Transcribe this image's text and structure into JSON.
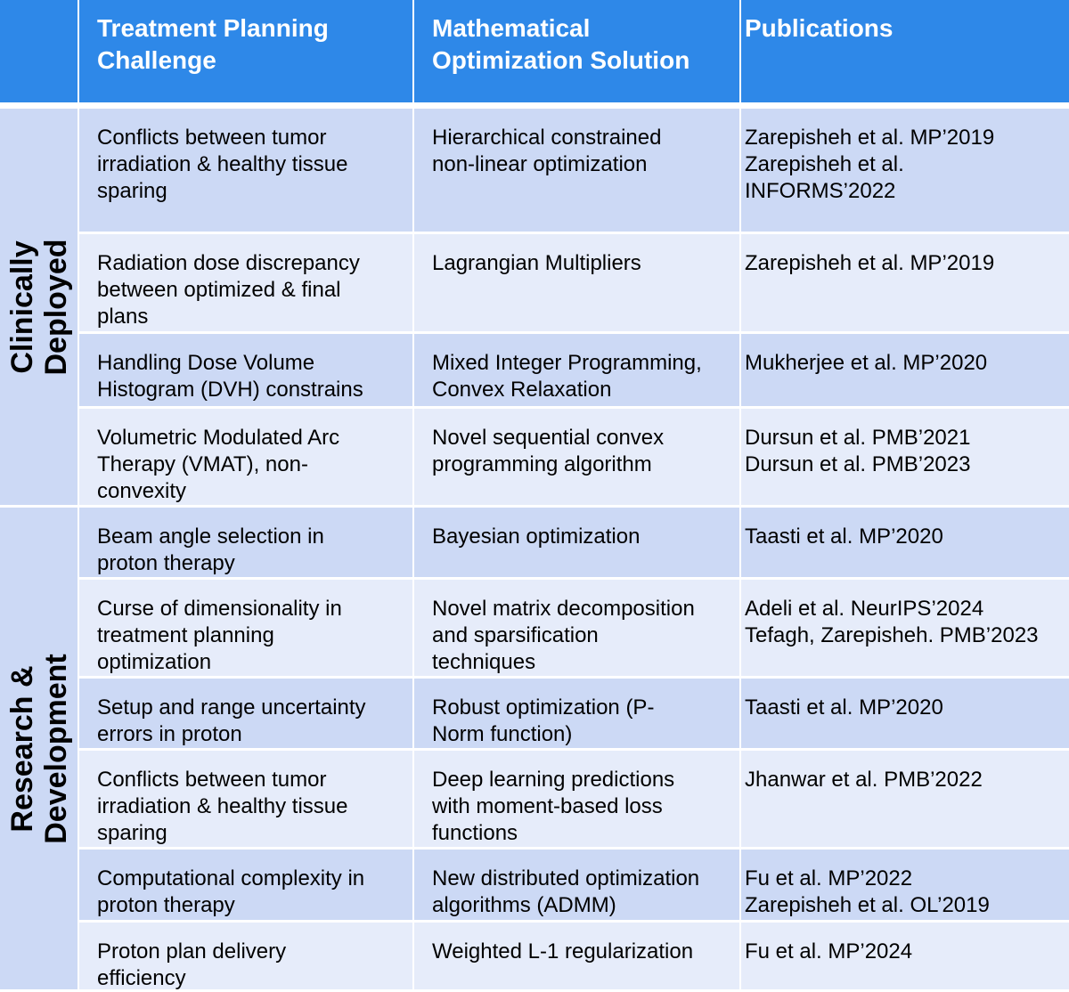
{
  "header": {
    "challenge": [
      "Treatment Planning",
      "Challenge"
    ],
    "solution": [
      "Mathematical",
      "Optimization Solution"
    ],
    "publications": [
      "Publications"
    ]
  },
  "groups": [
    {
      "label": [
        "Clinically",
        "Deployed"
      ]
    },
    {
      "label": [
        "Research &",
        "Development"
      ]
    }
  ],
  "rows": [
    {
      "challenge": [
        "Conflicts between tumor",
        "irradiation & healthy tissue",
        "sparing"
      ],
      "solution": [
        "Hierarchical constrained",
        "non-linear optimization"
      ],
      "publications": [
        "Zarepisheh et al. MP’2019",
        "Zarepisheh et al.",
        "INFORMS’2022"
      ]
    },
    {
      "challenge": [
        "Radiation dose discrepancy",
        "between optimized & final",
        "plans"
      ],
      "solution": [
        "Lagrangian Multipliers"
      ],
      "publications": [
        "Zarepisheh et al. MP’2019"
      ]
    },
    {
      "challenge": [
        "Handling Dose Volume",
        "Histogram (DVH) constrains"
      ],
      "solution": [
        "Mixed Integer Programming,",
        "Convex Relaxation"
      ],
      "publications": [
        "Mukherjee et al. MP’2020"
      ]
    },
    {
      "challenge": [
        "Volumetric Modulated Arc",
        "Therapy (VMAT), non-",
        "convexity"
      ],
      "solution": [
        "Novel sequential convex",
        "programming algorithm"
      ],
      "publications": [
        "Dursun et al. PMB’2021",
        "Dursun et al. PMB’2023"
      ]
    },
    {
      "challenge": [
        "Beam angle selection in",
        "proton therapy"
      ],
      "solution": [
        "Bayesian optimization"
      ],
      "publications": [
        "Taasti et al. MP’2020"
      ]
    },
    {
      "challenge": [
        "Curse of dimensionality in",
        "treatment planning",
        "optimization"
      ],
      "solution": [
        "Novel matrix decomposition",
        "and sparsification",
        "techniques"
      ],
      "publications": [
        "Adeli et al. NeurIPS’2024",
        "Tefagh, Zarepisheh. PMB’2023"
      ]
    },
    {
      "challenge": [
        "Setup and range uncertainty",
        "errors in proton"
      ],
      "solution": [
        "Robust optimization (P-",
        "Norm function)"
      ],
      "publications": [
        "Taasti et al. MP’2020"
      ]
    },
    {
      "challenge": [
        "Conflicts between tumor",
        "irradiation & healthy tissue",
        "sparing"
      ],
      "solution": [
        "Deep learning predictions",
        "with moment-based loss",
        "functions"
      ],
      "publications": [
        "Jhanwar et al. PMB’2022"
      ]
    },
    {
      "challenge": [
        "Computational complexity in",
        "proton therapy"
      ],
      "solution": [
        "New distributed optimization",
        "algorithms (ADMM)"
      ],
      "publications": [
        "Fu et al. MP’2022",
        "Zarepisheh et al. OL’2019"
      ]
    },
    {
      "challenge": [
        "Proton plan delivery",
        "efficiency"
      ],
      "solution": [
        "Weighted L-1 regularization"
      ],
      "publications": [
        "Fu et al. MP’2024"
      ]
    }
  ]
}
